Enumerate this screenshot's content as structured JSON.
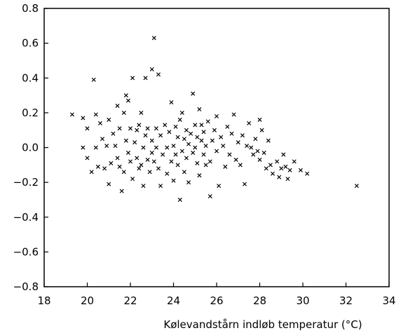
{
  "chart_data": {
    "type": "scatter",
    "title": "",
    "xlabel": "Kølevandstårn indløb  temperatur (°C)",
    "ylabel": "",
    "xlim": [
      18,
      34
    ],
    "ylim": [
      -0.8,
      0.8
    ],
    "xticks": [
      18,
      20,
      22,
      24,
      26,
      28,
      30,
      32,
      34
    ],
    "xtick_labels": [
      "18",
      "20",
      "22",
      "24",
      "26",
      "28",
      "30",
      "32",
      "34"
    ],
    "yticks": [
      -0.8,
      -0.6,
      -0.4,
      -0.2,
      0.0,
      0.2,
      0.4,
      0.6,
      0.8
    ],
    "ytick_labels": [
      "-0.8",
      "-0.6",
      "-0.4",
      "-0.2",
      "0.0",
      "0.2",
      "0.4",
      "0.6",
      "0.8"
    ],
    "grid": false,
    "marker": "x",
    "marker_color": "#000000",
    "points": [
      [
        19.3,
        0.19
      ],
      [
        19.8,
        0.17
      ],
      [
        19.8,
        0.0
      ],
      [
        20.0,
        0.11
      ],
      [
        20.0,
        -0.06
      ],
      [
        20.2,
        -0.14
      ],
      [
        20.3,
        0.39
      ],
      [
        20.4,
        0.19
      ],
      [
        20.4,
        0.0
      ],
      [
        20.5,
        -0.11
      ],
      [
        20.6,
        0.14
      ],
      [
        20.7,
        0.05
      ],
      [
        20.8,
        -0.12
      ],
      [
        20.9,
        0.01
      ],
      [
        21.0,
        0.16
      ],
      [
        21.0,
        -0.21
      ],
      [
        21.1,
        -0.09
      ],
      [
        21.2,
        0.08
      ],
      [
        21.3,
        0.01
      ],
      [
        21.4,
        -0.06
      ],
      [
        21.4,
        0.24
      ],
      [
        21.5,
        0.11
      ],
      [
        21.5,
        -0.11
      ],
      [
        21.6,
        -0.25
      ],
      [
        21.7,
        0.2
      ],
      [
        21.7,
        -0.14
      ],
      [
        21.8,
        0.3
      ],
      [
        21.8,
        0.04
      ],
      [
        21.9,
        -0.03
      ],
      [
        21.9,
        0.27
      ],
      [
        22.0,
        0.11
      ],
      [
        22.0,
        -0.08
      ],
      [
        22.1,
        -0.18
      ],
      [
        22.1,
        0.4
      ],
      [
        22.2,
        0.03
      ],
      [
        22.3,
        -0.06
      ],
      [
        22.3,
        0.1
      ],
      [
        22.4,
        0.13
      ],
      [
        22.4,
        -0.12
      ],
      [
        22.5,
        -0.1
      ],
      [
        22.5,
        0.2
      ],
      [
        22.6,
        0.0
      ],
      [
        22.6,
        -0.22
      ],
      [
        22.7,
        0.07
      ],
      [
        22.7,
        0.4
      ],
      [
        22.8,
        -0.07
      ],
      [
        22.8,
        0.11
      ],
      [
        22.9,
        -0.14
      ],
      [
        23.0,
        0.45
      ],
      [
        23.0,
        0.04
      ],
      [
        23.0,
        -0.03
      ],
      [
        23.1,
        0.63
      ],
      [
        23.1,
        -0.08
      ],
      [
        23.2,
        0.11
      ],
      [
        23.2,
        0.0
      ],
      [
        23.3,
        -0.12
      ],
      [
        23.3,
        0.42
      ],
      [
        23.4,
        0.07
      ],
      [
        23.4,
        -0.22
      ],
      [
        23.5,
        -0.04
      ],
      [
        23.6,
        0.13
      ],
      [
        23.7,
        0.0
      ],
      [
        23.7,
        -0.15
      ],
      [
        23.8,
        0.09
      ],
      [
        23.9,
        -0.08
      ],
      [
        23.9,
        0.26
      ],
      [
        24.0,
        0.01
      ],
      [
        24.0,
        -0.19
      ],
      [
        24.1,
        0.12
      ],
      [
        24.1,
        -0.04
      ],
      [
        24.2,
        0.06
      ],
      [
        24.2,
        -0.1
      ],
      [
        24.3,
        0.16
      ],
      [
        24.3,
        -0.3
      ],
      [
        24.4,
        -0.02
      ],
      [
        24.4,
        0.2
      ],
      [
        24.5,
        0.05
      ],
      [
        24.5,
        -0.14
      ],
      [
        24.6,
        0.1
      ],
      [
        24.6,
        -0.06
      ],
      [
        24.7,
        0.02
      ],
      [
        24.7,
        -0.2
      ],
      [
        24.8,
        0.08
      ],
      [
        24.9,
        -0.03
      ],
      [
        24.9,
        0.31
      ],
      [
        25.0,
        0.13
      ],
      [
        25.0,
        0.0
      ],
      [
        25.1,
        -0.09
      ],
      [
        25.1,
        0.06
      ],
      [
        25.2,
        0.22
      ],
      [
        25.2,
        -0.16
      ],
      [
        25.3,
        0.04
      ],
      [
        25.3,
        0.13
      ],
      [
        25.4,
        -0.04
      ],
      [
        25.4,
        0.09
      ],
      [
        25.5,
        -0.1
      ],
      [
        25.5,
        0.01
      ],
      [
        25.6,
        0.15
      ],
      [
        25.7,
        -0.08
      ],
      [
        25.7,
        -0.28
      ],
      [
        25.8,
        0.04
      ],
      [
        25.9,
        0.1
      ],
      [
        26.0,
        -0.02
      ],
      [
        26.0,
        0.18
      ],
      [
        26.1,
        -0.22
      ],
      [
        26.2,
        0.06
      ],
      [
        26.3,
        0.01
      ],
      [
        26.4,
        -0.11
      ],
      [
        26.5,
        0.12
      ],
      [
        26.6,
        -0.04
      ],
      [
        26.7,
        0.08
      ],
      [
        26.8,
        0.19
      ],
      [
        26.9,
        -0.07
      ],
      [
        27.0,
        0.03
      ],
      [
        27.1,
        -0.1
      ],
      [
        27.2,
        0.07
      ],
      [
        27.3,
        -0.21
      ],
      [
        27.4,
        0.01
      ],
      [
        27.5,
        0.14
      ],
      [
        27.6,
        0.0
      ],
      [
        27.7,
        -0.04
      ],
      [
        27.8,
        0.05
      ],
      [
        27.9,
        -0.02
      ],
      [
        28.0,
        0.16
      ],
      [
        28.0,
        -0.07
      ],
      [
        28.1,
        0.1
      ],
      [
        28.2,
        -0.03
      ],
      [
        28.3,
        -0.12
      ],
      [
        28.4,
        0.04
      ],
      [
        28.5,
        -0.1
      ],
      [
        28.6,
        -0.15
      ],
      [
        28.8,
        -0.08
      ],
      [
        28.9,
        -0.17
      ],
      [
        29.0,
        -0.12
      ],
      [
        29.1,
        -0.04
      ],
      [
        29.2,
        -0.11
      ],
      [
        29.3,
        -0.18
      ],
      [
        29.4,
        -0.13
      ],
      [
        29.6,
        -0.08
      ],
      [
        29.9,
        -0.13
      ],
      [
        30.2,
        -0.15
      ],
      [
        32.5,
        -0.22
      ]
    ]
  }
}
